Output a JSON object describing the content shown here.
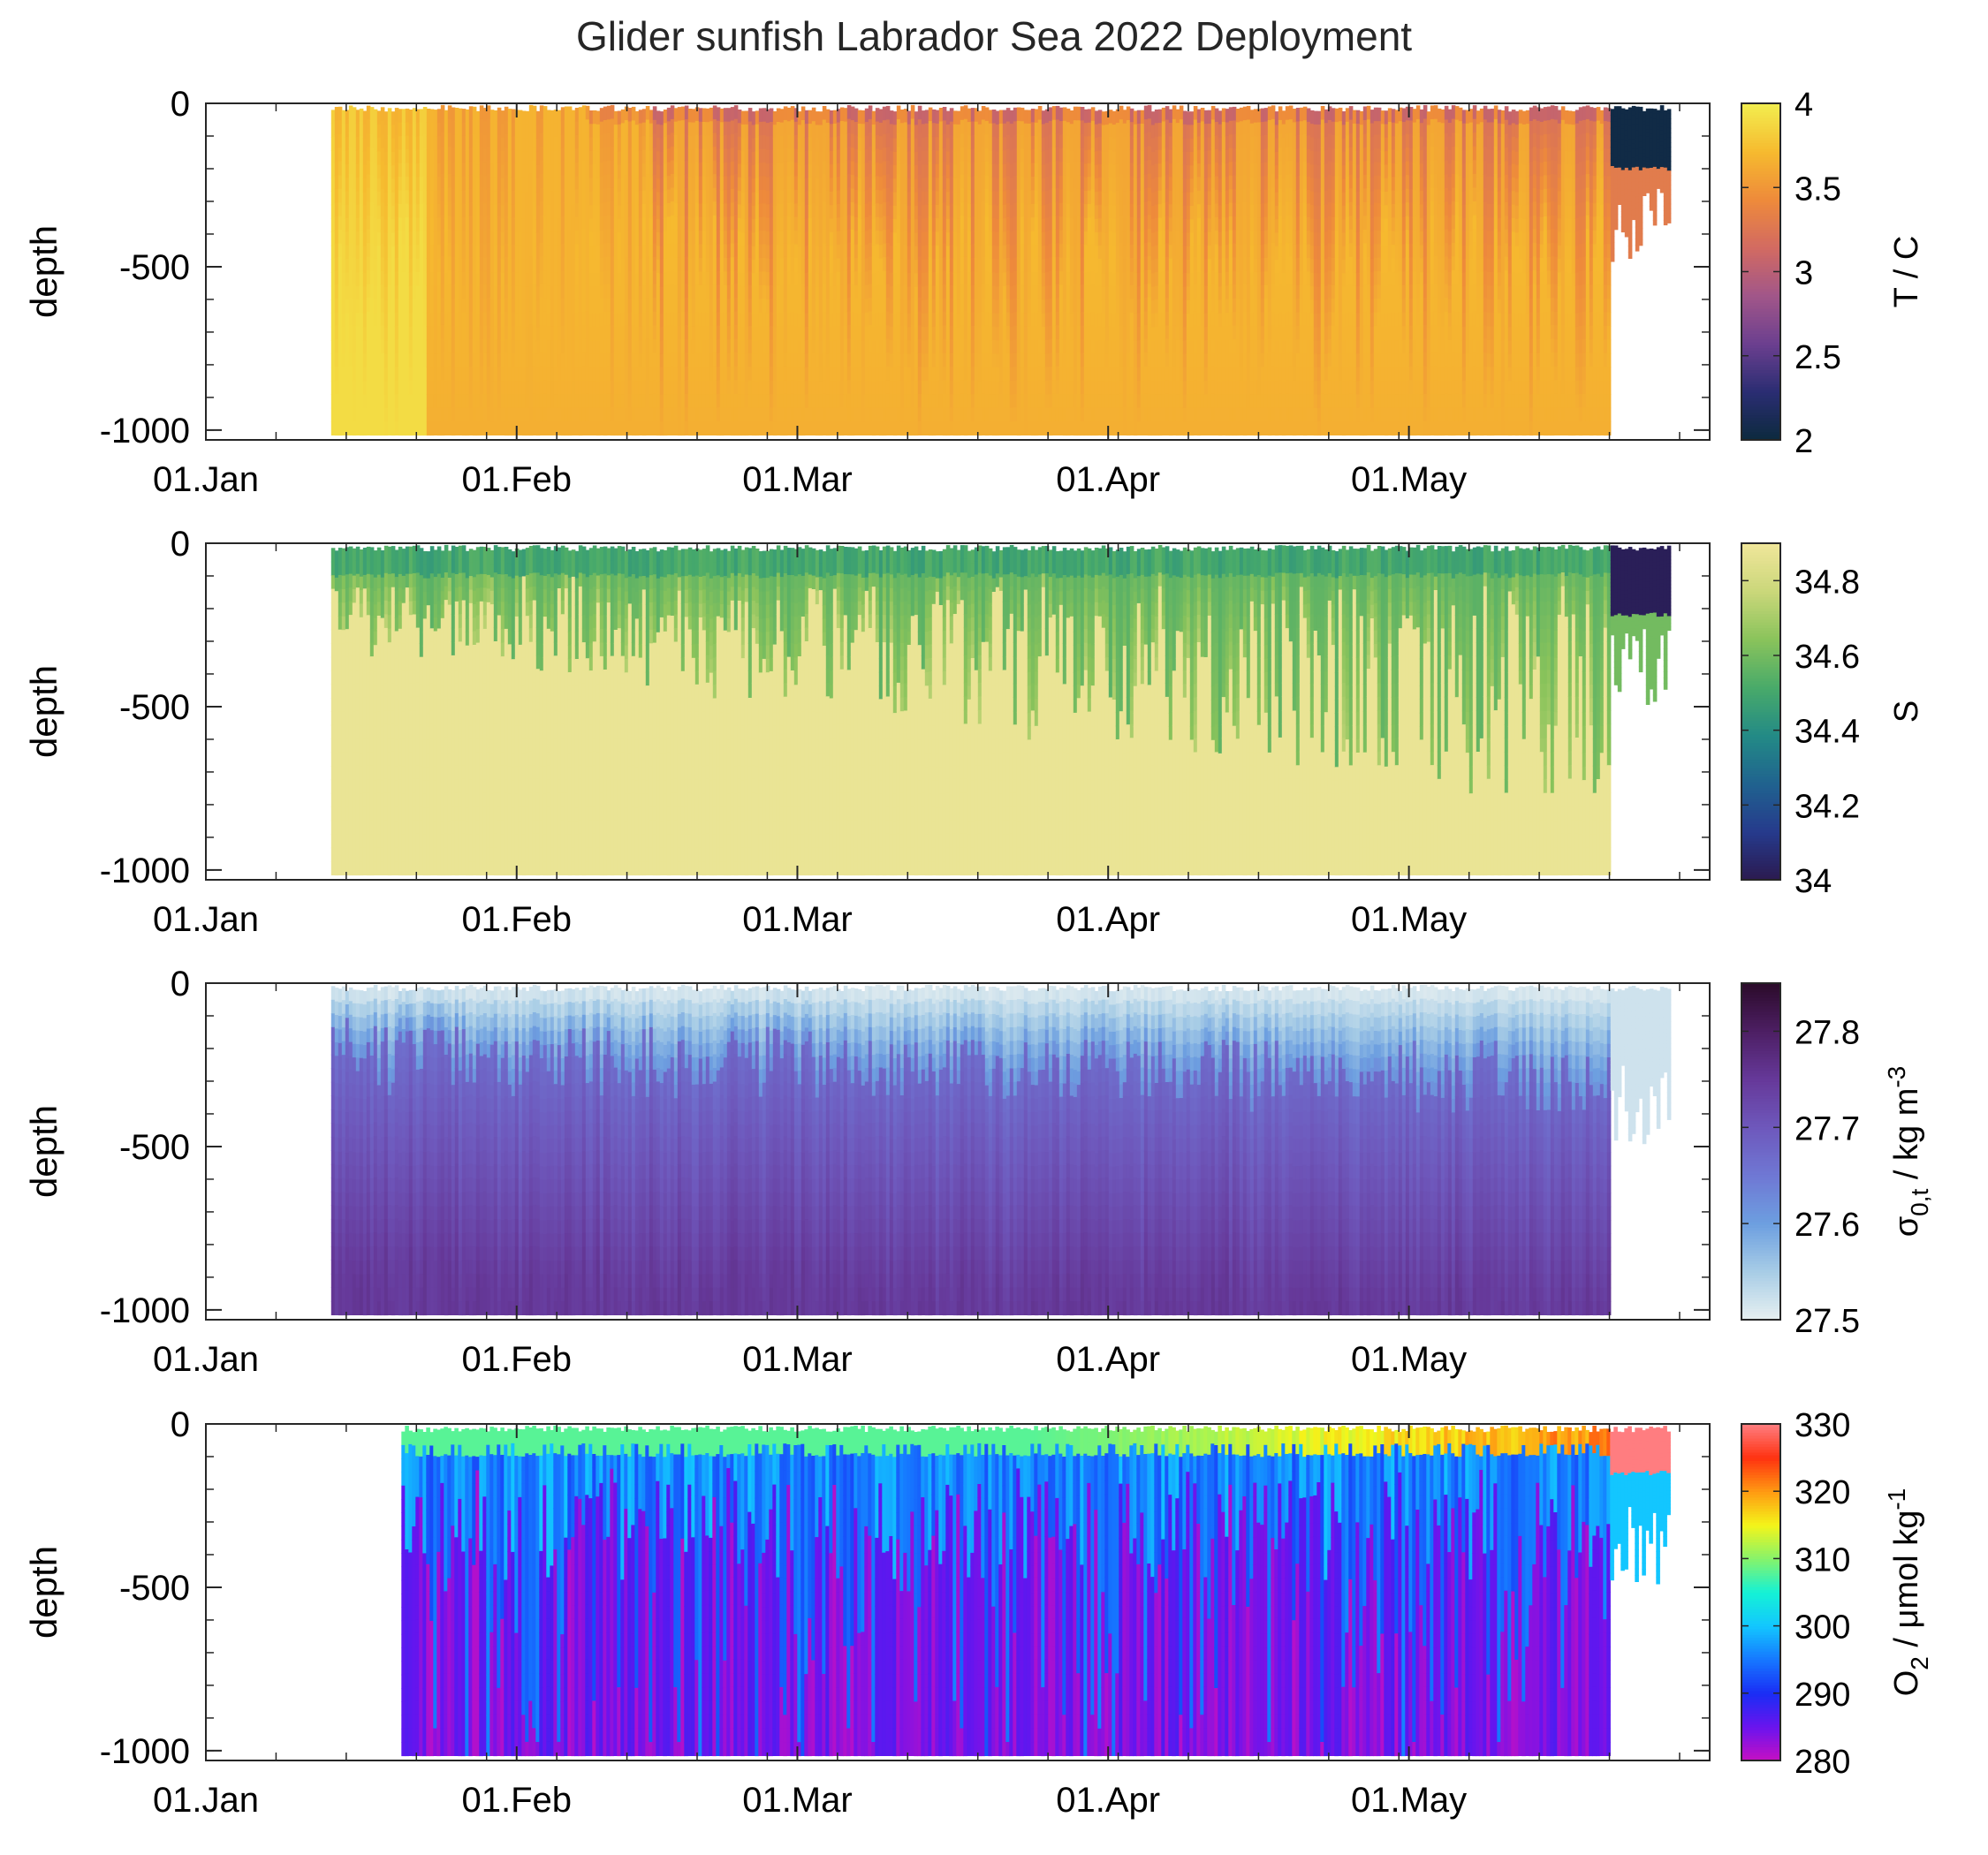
{
  "figure": {
    "title": "Glider sunfish Labrador Sea 2022 Deployment"
  },
  "chart_data": [
    {
      "type": "heatmap",
      "variable": "temperature",
      "ylabel": "depth",
      "colorbar_label": "T / C",
      "x_tick_labels": [
        "01.Jan",
        "01.Feb",
        "01.Mar",
        "01.Apr",
        "01.May"
      ],
      "x_tick_days": [
        0,
        31,
        59,
        90,
        120
      ],
      "xlim_days": [
        0,
        150
      ],
      "y_tick_labels": [
        "0",
        "-500",
        "-1000"
      ],
      "y_ticks": [
        0,
        -500,
        -1000
      ],
      "ylim": [
        -1030,
        0
      ],
      "clim": [
        2,
        4
      ],
      "c_ticks": [
        2,
        2.5,
        3,
        3.5,
        4
      ],
      "c_tick_labels": [
        "2",
        "2.5",
        "3",
        "3.5",
        "4"
      ],
      "colormap": [
        "#0c2a3d",
        "#2a2d72",
        "#6b3f8f",
        "#a15689",
        "#d26a62",
        "#ee8a3b",
        "#f6ba2f",
        "#f2ee4f"
      ],
      "data_start_day": 12.5,
      "main_end_day": 140,
      "data_end_day": 146,
      "summary": "3.5-4 C at depth; cooler 2.7-3.3 C patches in upper 500 m during Mar-May; ~2 C water near surface at end"
    },
    {
      "type": "heatmap",
      "variable": "salinity",
      "ylabel": "depth",
      "colorbar_label": "S",
      "x_tick_labels": [
        "01.Jan",
        "01.Feb",
        "01.Mar",
        "01.Apr",
        "01.May"
      ],
      "x_tick_days": [
        0,
        31,
        59,
        90,
        120
      ],
      "xlim_days": [
        0,
        150
      ],
      "y_tick_labels": [
        "0",
        "-500",
        "-1000"
      ],
      "y_ticks": [
        0,
        -500,
        -1000
      ],
      "ylim": [
        -1030,
        0
      ],
      "clim": [
        34.0,
        34.9
      ],
      "c_ticks": [
        34,
        34.2,
        34.4,
        34.6,
        34.8
      ],
      "c_tick_labels": [
        "34",
        "34.2",
        "34.4",
        "34.6",
        "34.8"
      ],
      "colormap": [
        "#2b1a4f",
        "#263a8c",
        "#20628f",
        "#238a86",
        "#48aa6a",
        "#89c35b",
        "#cad77a",
        "#f0e69a"
      ],
      "data_start_day": 12.5,
      "main_end_day": 140,
      "data_end_day": 146,
      "summary": "34.85-34.9 at depth; 34.4-34.6 in upper 300 m; fresh 34.0 surface water at end"
    },
    {
      "type": "heatmap",
      "variable": "potential density anomaly",
      "ylabel": "depth",
      "colorbar_label": "σ0,t / kg m-3",
      "colorbar_label_parts": [
        "σ",
        "0,t",
        " / kg m",
        "-3"
      ],
      "x_tick_labels": [
        "01.Jan",
        "01.Feb",
        "01.Mar",
        "01.Apr",
        "01.May"
      ],
      "x_tick_days": [
        0,
        31,
        59,
        90,
        120
      ],
      "xlim_days": [
        0,
        150
      ],
      "y_tick_labels": [
        "0",
        "-500",
        "-1000"
      ],
      "y_ticks": [
        0,
        -500,
        -1000
      ],
      "ylim": [
        -1030,
        0
      ],
      "clim": [
        27.5,
        27.85
      ],
      "c_ticks": [
        27.5,
        27.6,
        27.7,
        27.8
      ],
      "c_tick_labels": [
        "27.5",
        "27.6",
        "27.7",
        "27.8"
      ],
      "colormap": [
        "#e8f0f1",
        "#a8cde6",
        "#6d9fe0",
        "#6f78d4",
        "#6e58bc",
        "#66399a",
        "#4d1f64",
        "#2b0b2a"
      ],
      "data_start_day": 12.5,
      "main_end_day": 140,
      "data_end_day": 146,
      "summary": "light 27.5-27.6 near surface; 27.7-27.75 below 300 m"
    },
    {
      "type": "heatmap",
      "variable": "oxygen",
      "ylabel": "depth",
      "colorbar_label": "O2 / μmol kg-1",
      "colorbar_label_parts": [
        "O",
        "2",
        " / μmol kg",
        "-1"
      ],
      "x_tick_labels": [
        "01.Jan",
        "01.Feb",
        "01.Mar",
        "01.Apr",
        "01.May"
      ],
      "x_tick_days": [
        0,
        31,
        59,
        90,
        120
      ],
      "xlim_days": [
        0,
        150
      ],
      "y_tick_labels": [
        "0",
        "-500",
        "-1000"
      ],
      "y_ticks": [
        0,
        -500,
        -1000
      ],
      "ylim": [
        -1030,
        0
      ],
      "clim": [
        280,
        330
      ],
      "c_ticks": [
        280,
        290,
        300,
        310,
        320,
        330
      ],
      "c_tick_labels": [
        "280",
        "290",
        "300",
        "310",
        "320",
        "330"
      ],
      "colormap": [
        "#c70fc2",
        "#6a14ee",
        "#1a2df5",
        "#1677ff",
        "#13c6ff",
        "#14f2d6",
        "#86f36b",
        "#f4f51a",
        "#ff9a12",
        "#ff3210",
        "#ff7d80"
      ],
      "data_start_day": 19.5,
      "main_end_day": 140,
      "data_end_day": 146,
      "summary": "~280-285 at depth, ~292-300 in ventilated columns, 305-325 near surface in Apr-May"
    }
  ]
}
